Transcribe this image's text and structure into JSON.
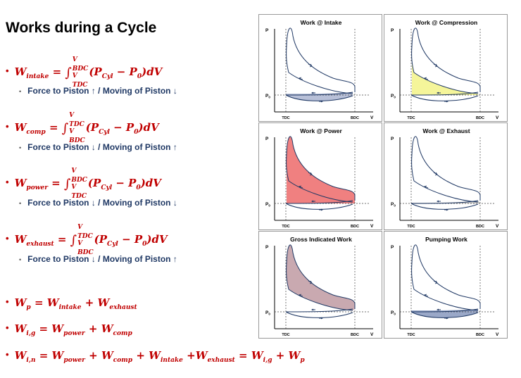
{
  "title": "Works during a Cycle",
  "equations": {
    "intake": {
      "lhs": "W",
      "lhs_sub": "intake",
      "lower": "V",
      "lower_sub": "TDC",
      "upper": "V",
      "upper_sub": "BDC",
      "integrand": "(P",
      "p_sub": "Cyl",
      "rest": " − P",
      "p0_sub": "0",
      "end": ")dV"
    },
    "comp": {
      "lhs": "W",
      "lhs_sub": "comp",
      "lower": "V",
      "lower_sub": "BDC",
      "upper": "V",
      "upper_sub": "TDC",
      "integrand": "(P",
      "p_sub": "Cyl",
      "rest": " − P",
      "p0_sub": "0",
      "end": ")dV"
    },
    "power": {
      "lhs": "W",
      "lhs_sub": "power",
      "lower": "V",
      "lower_sub": "TDC",
      "upper": "V",
      "upper_sub": "BDC",
      "integrand": "(P",
      "p_sub": "Cyl",
      "rest": " − P",
      "p0_sub": "0",
      "end": ")dV"
    },
    "exhaust": {
      "lhs": "W",
      "lhs_sub": "exhaust",
      "lower": "V",
      "lower_sub": "BDC",
      "upper": "V",
      "upper_sub": "TDC",
      "integrand": "(P",
      "p_sub": "Cyl",
      "rest": " − P",
      "p0_sub": "0",
      "end": ")dV"
    }
  },
  "notes": {
    "intake": "Force to Piston ↑ / Moving of Piston ↓",
    "comp": "Force to Piston ↓ / Moving of Piston ↑",
    "power": "Force to Piston ↓ / Moving of Piston ↓",
    "exhaust": "Force to Piston ↓ / Moving of Piston ↑"
  },
  "summary": {
    "wp": {
      "a": "W",
      "a_sub": "p",
      "b": "W",
      "b_sub": "intake",
      "c": "W",
      "c_sub": "exhaust"
    },
    "wig": {
      "a": "W",
      "a_sub": "i,g",
      "b": "W",
      "b_sub": "power",
      "c": "W",
      "c_sub": "comp"
    },
    "win": {
      "a": "W",
      "a_sub": "i,n",
      "b": "W",
      "b_sub": "power",
      "c": "W",
      "c_sub": "comp",
      "d": "W",
      "d_sub": "intake",
      "e": "W",
      "e_sub": "exhaust",
      "f": "W",
      "f_sub": "i,g",
      "g": "W",
      "g_sub": "p"
    }
  },
  "panels": [
    {
      "id": "intake",
      "title": "Work @ Intake",
      "fill": "#b8c0d8",
      "region": "loop"
    },
    {
      "id": "compression",
      "title": "Work @ Compression",
      "fill": "#f5f59a",
      "region": "compression"
    },
    {
      "id": "power",
      "title": "Work @ Power",
      "fill": "#f08080",
      "region": "power"
    },
    {
      "id": "exhaust",
      "title": "Work @ Exhaust",
      "fill": "#c8c8c8",
      "region": "exhaust"
    },
    {
      "id": "gross",
      "title": "Gross Indicated Work",
      "fill": "#c9a9b0",
      "region": "gross"
    },
    {
      "id": "pumping",
      "title": "Pumping Work",
      "fill": "#9aa8c8",
      "region": "pumping"
    }
  ],
  "axis": {
    "p": "P",
    "p0": "P",
    "p0_sub": "0",
    "v": "V",
    "tdc": "TDC",
    "bdc": "BDC"
  },
  "colors": {
    "equation": "#c00000",
    "note": "#1f3864",
    "curve": "#1f3864"
  }
}
